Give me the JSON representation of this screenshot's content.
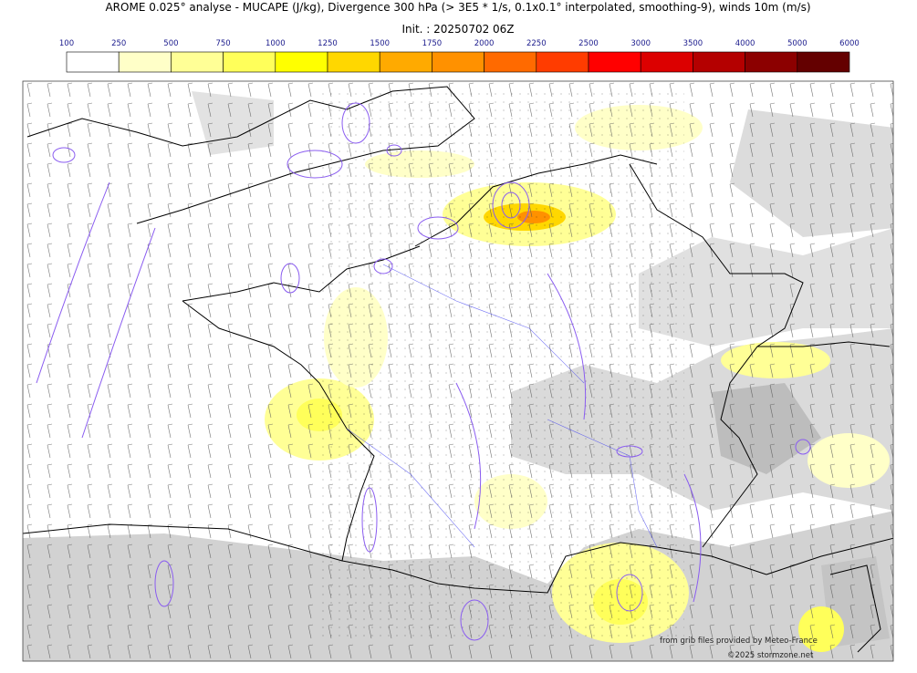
{
  "title": "AROME 0.025° analyse - MUCAPE (J/kg), Divergence 300 hPa (> 3E5 * 1/s, 0.1x0.1° interpolated, smoothing-9), winds 10m (m/s)",
  "init": "Init. : 20250702 06Z",
  "colorbar": {
    "levels": [
      100,
      250,
      500,
      750,
      1000,
      1250,
      1500,
      1750,
      2000,
      2250,
      2500,
      3000,
      3500,
      4000,
      5000,
      6000
    ],
    "colors": [
      "#ffffff",
      "#ffffc8",
      "#ffff96",
      "#ffff5a",
      "#ffff00",
      "#ffd700",
      "#ffaa00",
      "#ff9100",
      "#ff6a00",
      "#ff3c00",
      "#ff0000",
      "#dc0000",
      "#b40000",
      "#8c0000",
      "#640000"
    ]
  },
  "credits": [
    "from grib files provided by Meteo-France",
    "©2025 stormzone.net"
  ]
}
